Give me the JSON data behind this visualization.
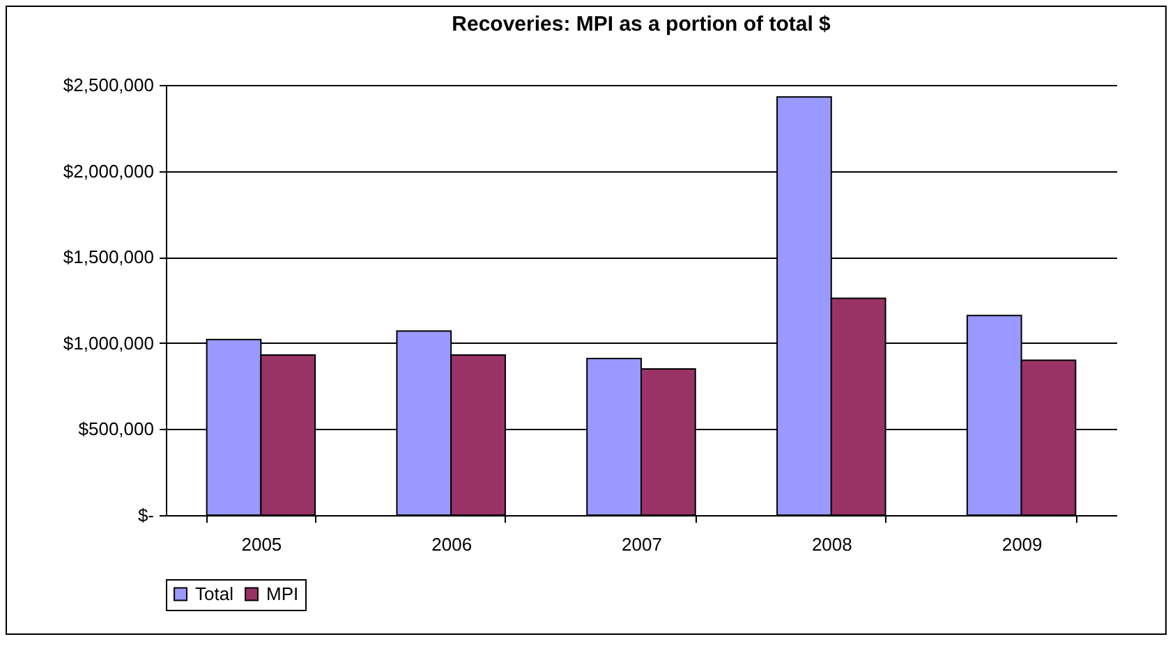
{
  "chart_data": {
    "type": "bar",
    "title": "Recoveries: MPI as a portion of total $",
    "categories": [
      "2005",
      "2006",
      "2007",
      "2008",
      "2009"
    ],
    "series": [
      {
        "name": "Total",
        "color": "#9999ff",
        "values": [
          1020000,
          1070000,
          910000,
          2430000,
          1160000
        ]
      },
      {
        "name": "MPI",
        "color": "#993366",
        "values": [
          930000,
          930000,
          850000,
          1260000,
          900000
        ]
      }
    ],
    "ylim": [
      0,
      2500000
    ],
    "yticks": [
      {
        "value": 0,
        "label": "$-"
      },
      {
        "value": 500000,
        "label": "$500,000"
      },
      {
        "value": 1000000,
        "label": "$1,000,000"
      },
      {
        "value": 1500000,
        "label": "$1,500,000"
      },
      {
        "value": 2000000,
        "label": "$2,000,000"
      },
      {
        "value": 2500000,
        "label": "$2,500,000"
      }
    ],
    "grid": "y",
    "legend": "bottom"
  }
}
